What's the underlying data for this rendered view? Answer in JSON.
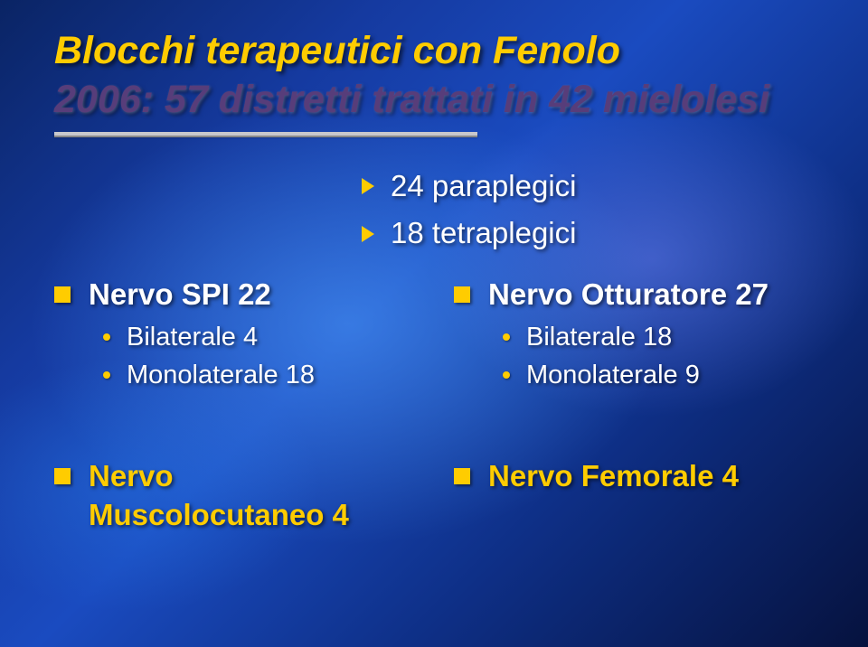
{
  "colors": {
    "accent": "#ffcc00",
    "title2": "#573D7A",
    "text": "#ffffff"
  },
  "title": {
    "line1": "Blocchi terapeutici con Fenolo",
    "line2": "2006: 57 distretti trattati in 42 mielolesi"
  },
  "summary": [
    "24 paraplegici",
    "18 tetraplegici"
  ],
  "left": {
    "a": {
      "head": "Nervo SPI 22",
      "subs": [
        "Bilaterale 4",
        "Monolaterale 18"
      ]
    },
    "b": {
      "head_l1": "Nervo",
      "head_l2": "Muscolocutaneo 4"
    }
  },
  "right": {
    "a": {
      "head": "Nervo Otturatore 27",
      "subs": [
        "Bilaterale 18",
        "Monolaterale 9"
      ]
    },
    "b": {
      "head": "Nervo Femorale 4"
    }
  }
}
